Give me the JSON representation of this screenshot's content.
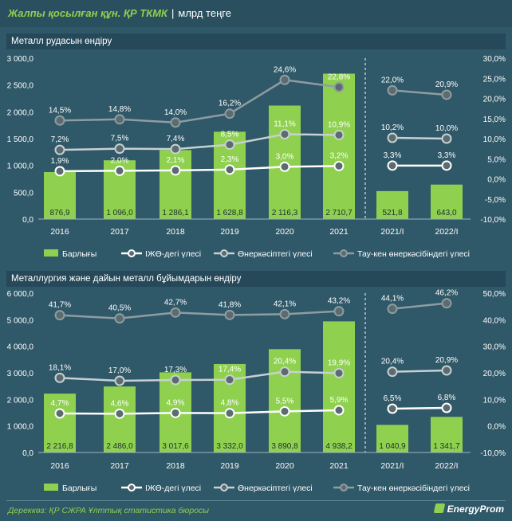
{
  "header": {
    "title": "Жалпы қосылған құн. ҚР ТКМК",
    "separator": "|",
    "unit": "млрд теңге"
  },
  "source": "Дереккөз: ҚР СЖРА Ұлттық статистика бюросы",
  "logo": "EnergyProm",
  "colors": {
    "bar": "#8fd14f",
    "ijo": "#ffffff",
    "industry": "#c8d0d3",
    "mining": "#8e9da2",
    "background": "#2f5868"
  },
  "chart_data": [
    {
      "type": "bar",
      "title": "Металл рудасын өндіру",
      "categories": [
        "2016",
        "2017",
        "2018",
        "2019",
        "2020",
        "2021",
        "2021/I",
        "2022/I"
      ],
      "y_left": {
        "ticks": [
          "0,0",
          "500,0",
          "1 000,0",
          "1 500,0",
          "2 000,0",
          "2 500,0",
          "3 000,0"
        ],
        "ylim": [
          0,
          3000
        ]
      },
      "y_right": {
        "ticks": [
          "-10,0%",
          "-5,0%",
          "0,0%",
          "5,0%",
          "10,0%",
          "15,0%",
          "20,0%",
          "25,0%",
          "30,0%"
        ],
        "ylim": [
          -10,
          30
        ]
      },
      "bars": {
        "name": "Барлығы",
        "values": [
          876.9,
          1096.0,
          1286.1,
          1628.8,
          2116.3,
          2710.7,
          521.8,
          643.0
        ],
        "labels": [
          "876,9",
          "1 096,0",
          "1 286,1",
          "1 628,8",
          "2 116,3",
          "2 710,7",
          "521,8",
          "643,0"
        ]
      },
      "series": [
        {
          "name": "ІЖӨ-дегі үлесі",
          "values": [
            1.9,
            2.0,
            2.1,
            2.3,
            3.0,
            3.2,
            3.3,
            3.3
          ],
          "labels": [
            "1,9%",
            "2,0%",
            "2,1%",
            "2,3%",
            "3,0%",
            "3,2%",
            "3,3%",
            "3,3%"
          ]
        },
        {
          "name": "Өнеркәсіптегі үлесі",
          "values": [
            7.2,
            7.5,
            7.4,
            8.5,
            11.1,
            10.9,
            10.2,
            10.0
          ],
          "labels": [
            "7,2%",
            "7,5%",
            "7,4%",
            "8,5%",
            "11,1%",
            "10,9%",
            "10,2%",
            "10,0%"
          ]
        },
        {
          "name": "Тау-кен өнеркәсібіндегі үлесі",
          "values": [
            14.5,
            14.8,
            14.0,
            16.2,
            24.6,
            22.8,
            22.0,
            20.9
          ],
          "labels": [
            "14,5%",
            "14,8%",
            "14,0%",
            "16,2%",
            "24,6%",
            "22,8%",
            "22,0%",
            "20,9%"
          ]
        }
      ]
    },
    {
      "type": "bar",
      "title": "Металлургия және дайын металл бұйымдарын өндіру",
      "categories": [
        "2016",
        "2017",
        "2018",
        "2019",
        "2020",
        "2021",
        "2021/I",
        "2022/I"
      ],
      "y_left": {
        "ticks": [
          "0,0",
          "1 000,0",
          "2 000,0",
          "3 000,0",
          "4 000,0",
          "5 000,0",
          "6 000,0"
        ],
        "ylim": [
          0,
          6000
        ]
      },
      "y_right": {
        "ticks": [
          "-10,0%",
          "0,0%",
          "10,0%",
          "20,0%",
          "30,0%",
          "40,0%",
          "50,0%"
        ],
        "ylim": [
          -10,
          50
        ]
      },
      "bars": {
        "name": "Барлығы",
        "values": [
          2216.8,
          2486.0,
          3017.6,
          3332.0,
          3890.8,
          4938.2,
          1040.9,
          1341.7
        ],
        "labels": [
          "2 216,8",
          "2 486,0",
          "3 017,6",
          "3 332,0",
          "3 890,8",
          "4 938,2",
          "1 040,9",
          "1 341,7"
        ]
      },
      "series": [
        {
          "name": "ІЖӨ-дегі үлесі",
          "values": [
            4.7,
            4.6,
            4.9,
            4.8,
            5.5,
            5.9,
            6.5,
            6.8
          ],
          "labels": [
            "4,7%",
            "4,6%",
            "4,9%",
            "4,8%",
            "5,5%",
            "5,9%",
            "6,5%",
            "6,8%"
          ]
        },
        {
          "name": "Өнеркәсіптегі үлесі",
          "values": [
            18.1,
            17.0,
            17.3,
            17.4,
            20.4,
            19.9,
            20.4,
            20.9
          ],
          "labels": [
            "18,1%",
            "17,0%",
            "17,3%",
            "17,4%",
            "20,4%",
            "19,9%",
            "20,4%",
            "20,9%"
          ]
        },
        {
          "name": "Тау-кен өнеркәсібіндегі үлесі",
          "values": [
            41.7,
            40.5,
            42.7,
            41.8,
            42.1,
            43.2,
            44.1,
            46.2
          ],
          "labels": [
            "41,7%",
            "40,5%",
            "42,7%",
            "41,8%",
            "42,1%",
            "43,2%",
            "44,1%",
            "46,2%"
          ]
        }
      ]
    }
  ]
}
